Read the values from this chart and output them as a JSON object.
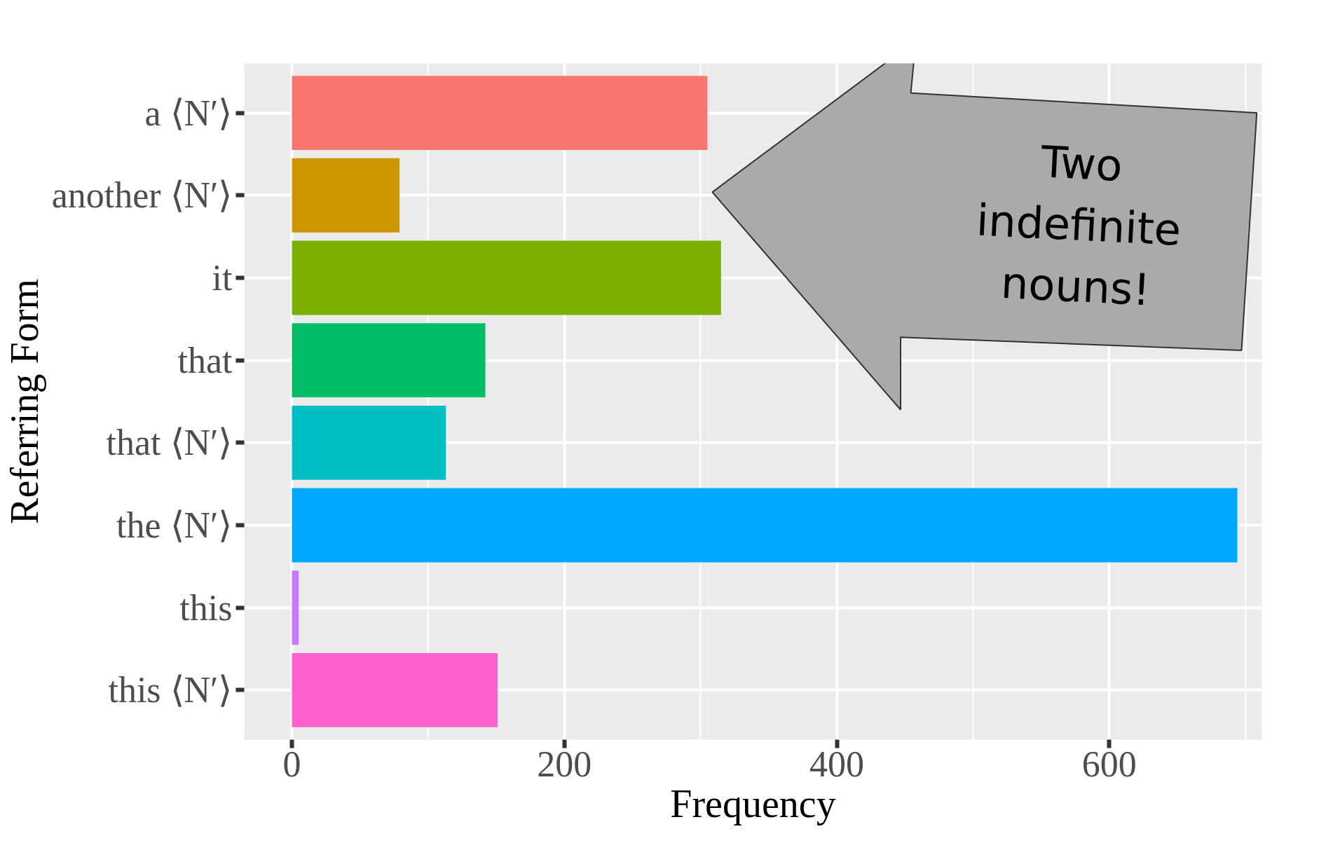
{
  "chart_data": {
    "type": "bar",
    "orientation": "horizontal",
    "xlabel": "Frequency",
    "ylabel": "Referring Form",
    "categories": [
      "a ⟨N′⟩",
      "another ⟨N′⟩",
      "it",
      "that",
      "that ⟨N′⟩",
      "the ⟨N′⟩",
      "this",
      "this ⟨N′⟩"
    ],
    "values": [
      305,
      79,
      315,
      142,
      113,
      694,
      5,
      151
    ],
    "colors": [
      "#f8766d",
      "#cd9600",
      "#7cae00",
      "#00be67",
      "#00bfc4",
      "#00a9ff",
      "#c77cff",
      "#ff61cc"
    ],
    "xlim": [
      -35,
      712
    ],
    "xticks": [
      0,
      200,
      400,
      600
    ],
    "grid": true,
    "annotations": [
      "Two indefinite nouns!"
    ]
  }
}
